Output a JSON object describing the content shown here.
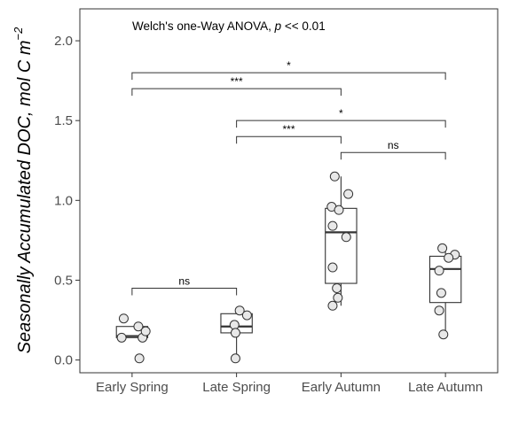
{
  "chart_data": {
    "type": "box",
    "annotation": {
      "prefix": "Welch's one-Way ANOVA, ",
      "p_symbol": "p",
      "suffix": " << 0.01"
    },
    "ylabel": {
      "text": "Seasonally Accumulated DOC, mol C m",
      "superscript": "−2"
    },
    "ylim": [
      -0.08,
      2.2
    ],
    "yticks": [
      "0.0",
      "0.5",
      "1.0",
      "1.5",
      "2.0"
    ],
    "grid": false,
    "categories": [
      "Early Spring",
      "Late Spring",
      "Early Autumn",
      "Late Autumn"
    ],
    "boxes": [
      {
        "category": "Early Spring",
        "whisker_low": 0.14,
        "q1": 0.14,
        "median": 0.15,
        "q3": 0.21,
        "whisker_high": 0.21
      },
      {
        "category": "Late Spring",
        "whisker_low": 0.01,
        "q1": 0.17,
        "median": 0.21,
        "q3": 0.29,
        "whisker_high": 0.31
      },
      {
        "category": "Early Autumn",
        "whisker_low": 0.34,
        "q1": 0.48,
        "median": 0.8,
        "q3": 0.95,
        "whisker_high": 1.15
      },
      {
        "category": "Late Autumn",
        "whisker_low": 0.16,
        "q1": 0.36,
        "median": 0.57,
        "q3": 0.65,
        "whisker_high": 0.7
      }
    ],
    "points": [
      {
        "category": "Early Spring",
        "values": [
          0.26,
          0.21,
          0.14,
          0.14,
          0.18,
          0.01
        ],
        "jitter": [
          -0.08,
          0.06,
          -0.1,
          0.1,
          0.13,
          0.07
        ]
      },
      {
        "category": "Late Spring",
        "values": [
          0.31,
          0.28,
          0.22,
          0.17,
          0.01
        ],
        "jitter": [
          0.03,
          0.1,
          -0.02,
          -0.01,
          -0.01
        ]
      },
      {
        "category": "Early Autumn",
        "values": [
          1.15,
          1.04,
          0.96,
          0.94,
          0.84,
          0.77,
          0.58,
          0.45,
          0.39,
          0.34
        ],
        "jitter": [
          -0.06,
          0.07,
          -0.09,
          -0.02,
          -0.08,
          0.05,
          -0.08,
          -0.04,
          -0.03,
          -0.08
        ],
        "outliers": []
      },
      {
        "category": "Late Autumn",
        "values": [
          0.7,
          0.66,
          0.64,
          0.56,
          0.42,
          0.31,
          0.16
        ],
        "jitter": [
          -0.03,
          0.09,
          0.03,
          -0.06,
          -0.04,
          -0.06,
          -0.02
        ]
      }
    ],
    "comparisons": [
      {
        "from": "Early Spring",
        "to": "Late Autumn",
        "y": 1.8,
        "label": "*"
      },
      {
        "from": "Early Spring",
        "to": "Early Autumn",
        "y": 1.7,
        "label": "***"
      },
      {
        "from": "Late Spring",
        "to": "Late Autumn",
        "y": 1.5,
        "label": "*"
      },
      {
        "from": "Late Spring",
        "to": "Early Autumn",
        "y": 1.4,
        "label": "***"
      },
      {
        "from": "Early Autumn",
        "to": "Late Autumn",
        "y": 1.3,
        "label": "ns"
      },
      {
        "from": "Early Spring",
        "to": "Late Spring",
        "y": 0.45,
        "label": "ns"
      }
    ],
    "colors": {
      "box_fill": "#ffffff",
      "box_stroke": "#333333",
      "point_fill": "#e8e8e8",
      "point_stroke": "#333333",
      "axis": "#333333",
      "text": "#000000",
      "tick_text": "#4d4d4d"
    }
  }
}
